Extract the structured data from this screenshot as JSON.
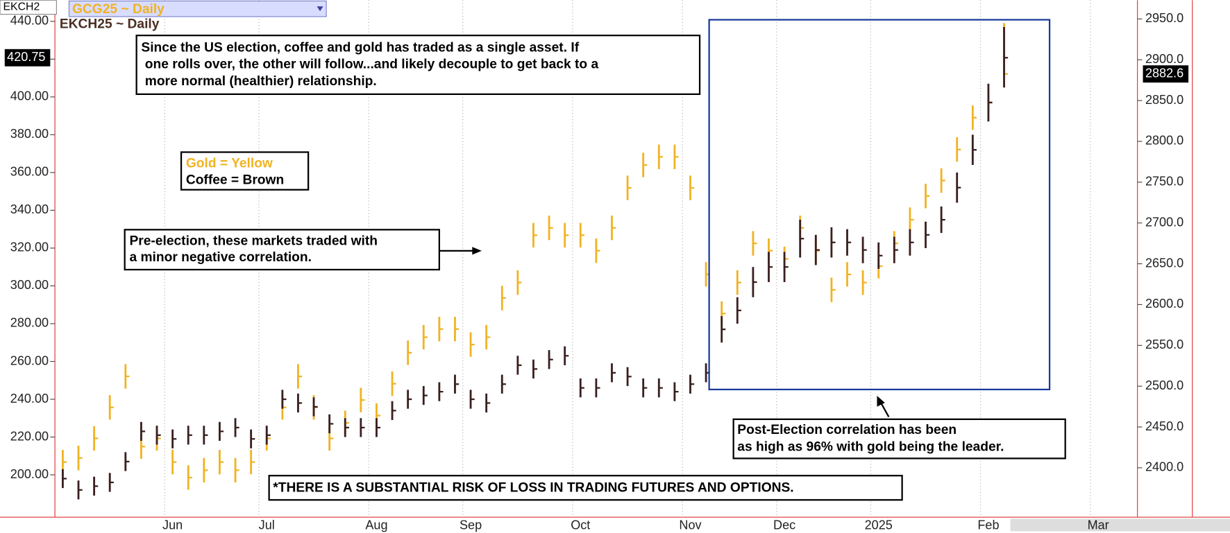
{
  "header": {
    "symbol": "EKCH2",
    "overlay": "GCG25 ~ Daily",
    "subtitle": "EKCH25 ~ Daily"
  },
  "chart_data": {
    "type": "ohlc",
    "categories": [
      null,
      null,
      null,
      null,
      null,
      null,
      null,
      "Jun",
      null,
      null,
      null,
      null,
      null,
      "Jul",
      null,
      null,
      null,
      null,
      null,
      null,
      "Aug",
      null,
      null,
      null,
      null,
      null,
      "Sep",
      null,
      null,
      null,
      null,
      null,
      null,
      "Oct",
      null,
      null,
      null,
      null,
      null,
      null,
      "Nov",
      null,
      null,
      null,
      null,
      null,
      "Dec",
      null,
      null,
      null,
      null,
      null,
      "2025",
      null,
      null,
      null,
      null,
      null,
      null,
      "Feb",
      null,
      null,
      null,
      null,
      null,
      null,
      "Mar",
      null,
      null
    ],
    "ylim": [
      177.6,
      451.2
    ],
    "yticks": [
      {
        "value": 200,
        "label": "200.00"
      },
      {
        "value": 220,
        "label": "220.00"
      },
      {
        "value": 240,
        "label": "240.00"
      },
      {
        "value": 260,
        "label": "260.00"
      },
      {
        "value": 280,
        "label": "280.00"
      },
      {
        "value": 300,
        "label": "300.00"
      },
      {
        "value": 320,
        "label": "320.00"
      },
      {
        "value": 340,
        "label": "340.00"
      },
      {
        "value": 360,
        "label": "360.00"
      },
      {
        "value": 380,
        "label": "380.00"
      },
      {
        "value": 400,
        "label": "400.00"
      },
      {
        "value": 420,
        "label": "420.00"
      },
      {
        "value": 440,
        "label": "440.00"
      }
    ],
    "y2lim": [
      2339.5,
      2973
    ],
    "y2ticks": [
      {
        "value": 2400,
        "label": "2400.0"
      },
      {
        "value": 2450,
        "label": "2450.0"
      },
      {
        "value": 2500,
        "label": "2500.0"
      },
      {
        "value": 2550,
        "label": "2550.0"
      },
      {
        "value": 2600,
        "label": "2600.0"
      },
      {
        "value": 2650,
        "label": "2650.0"
      },
      {
        "value": 2700,
        "label": "2700.0"
      },
      {
        "value": 2750,
        "label": "2750.0"
      },
      {
        "value": 2800,
        "label": "2800.0"
      },
      {
        "value": 2850,
        "label": "2850.0"
      },
      {
        "value": 2900,
        "label": "2900.0"
      },
      {
        "value": 2950,
        "label": "2950.0"
      }
    ],
    "x_grid": true,
    "series": [
      {
        "name": "Gold = Yellow",
        "axis": "y2",
        "color": "#f0b323",
        "values": [
          2407,
          2412,
          2436,
          2474,
          2512,
          2426,
          2436,
          2407,
          2388,
          2397,
          2407,
          2397,
          2407,
          2436,
          2474,
          2512,
          2474,
          2436,
          2455,
          2483,
          2464,
          2503,
          2541,
          2560,
          2570,
          2570,
          2551,
          2560,
          2608,
          2627,
          2685,
          2694,
          2685,
          2685,
          2666,
          2694,
          2743,
          2771,
          2781,
          2781,
          2743,
          2637,
          2589,
          2627,
          2675,
          2666,
          2656,
          2694,
          2666,
          2618,
          2637,
          2627,
          2647,
          2675,
          2704,
          2733,
          2752,
          2790,
          2829,
          2848,
          2882.6,
          null,
          null,
          null,
          null,
          null,
          null,
          null,
          null
        ],
        "high": [
          2422,
          2427,
          2451,
          2489,
          2527,
          2441,
          2451,
          2422,
          2403,
          2412,
          2422,
          2412,
          2422,
          2451,
          2489,
          2527,
          2489,
          2451,
          2470,
          2498,
          2479,
          2518,
          2556,
          2575,
          2585,
          2585,
          2566,
          2575,
          2623,
          2642,
          2700,
          2709,
          2700,
          2700,
          2681,
          2709,
          2758,
          2786,
          2796,
          2796,
          2758,
          2652,
          2604,
          2642,
          2690,
          2681,
          2671,
          2709,
          2681,
          2633,
          2652,
          2642,
          2662,
          2690,
          2719,
          2748,
          2767,
          2805,
          2844,
          2863,
          2945,
          null,
          null,
          null,
          null,
          null,
          null,
          null,
          null
        ],
        "low": [
          2392,
          2397,
          2421,
          2459,
          2497,
          2411,
          2421,
          2392,
          2373,
          2382,
          2392,
          2382,
          2392,
          2421,
          2459,
          2497,
          2459,
          2421,
          2440,
          2468,
          2449,
          2488,
          2526,
          2545,
          2555,
          2555,
          2536,
          2545,
          2593,
          2612,
          2670,
          2679,
          2670,
          2670,
          2651,
          2679,
          2728,
          2756,
          2766,
          2766,
          2728,
          2622,
          2574,
          2612,
          2660,
          2651,
          2641,
          2679,
          2651,
          2603,
          2622,
          2612,
          2632,
          2660,
          2689,
          2718,
          2737,
          2775,
          2814,
          2833,
          2880,
          null,
          null,
          null,
          null,
          null,
          null,
          null,
          null
        ]
      },
      {
        "name": "Coffee = Brown",
        "axis": "y",
        "color": "#3a1f20",
        "values": [
          198,
          192,
          194,
          196,
          207,
          223,
          221,
          219,
          221,
          221,
          223,
          225,
          219,
          221,
          240,
          238,
          236,
          227,
          225,
          225,
          225,
          234,
          240,
          242,
          244,
          248,
          240,
          238,
          248,
          258,
          256,
          261,
          263,
          246,
          246,
          254,
          252,
          246,
          246,
          244,
          248,
          254,
          277,
          287,
          302,
          310,
          310,
          325,
          319,
          323,
          323,
          319,
          316,
          319,
          323,
          327,
          335,
          352,
          372,
          397,
          420.75,
          null,
          null,
          null,
          null,
          null,
          null,
          null,
          null
        ],
        "high": [
          203,
          197,
          199,
          201,
          212,
          228,
          226,
          224,
          226,
          226,
          228,
          230,
          224,
          226,
          245,
          243,
          241,
          232,
          230,
          230,
          230,
          239,
          245,
          247,
          249,
          253,
          245,
          243,
          253,
          263,
          261,
          266,
          268,
          251,
          251,
          259,
          257,
          251,
          251,
          249,
          253,
          259,
          284,
          294,
          310,
          318,
          318,
          335,
          327,
          331,
          330,
          326,
          323,
          326,
          330,
          334,
          342,
          360,
          380,
          407,
          437,
          null,
          null,
          null,
          null,
          null,
          null,
          null,
          null
        ],
        "low": [
          193,
          187,
          189,
          191,
          202,
          218,
          216,
          214,
          216,
          216,
          218,
          220,
          214,
          216,
          235,
          233,
          231,
          222,
          220,
          220,
          220,
          229,
          235,
          237,
          239,
          243,
          235,
          233,
          243,
          253,
          251,
          256,
          258,
          241,
          241,
          249,
          247,
          241,
          241,
          239,
          243,
          249,
          270,
          280,
          294,
          302,
          302,
          315,
          311,
          315,
          316,
          312,
          309,
          312,
          316,
          320,
          328,
          344,
          364,
          387,
          405,
          null,
          null,
          null,
          null,
          null,
          null,
          null,
          null
        ]
      }
    ],
    "annotations": {
      "headline": [
        "Since the US election, coffee and gold has traded as a single asset. If",
        " one rolls over, the other will follow...and likely decouple to get back to a",
        " more normal (healthier) relationship."
      ],
      "pre_election": [
        "Pre-election, these markets traded with",
        "a minor negative correlation."
      ],
      "post_election": [
        "Post-Election correlation has been",
        "as high as 96% with gold being the leader."
      ],
      "disclaimer": "*THERE IS A SUBSTANTIAL RISK OF LOSS IN TRADING FUTURES AND OPTIONS."
    }
  }
}
